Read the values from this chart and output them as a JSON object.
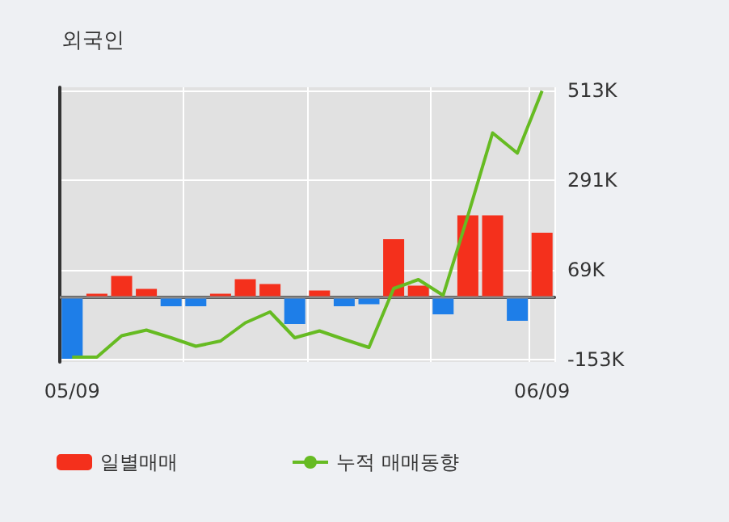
{
  "chart_data": {
    "type": "bar",
    "title": "외국인",
    "categories": [
      "05/09",
      null,
      null,
      null,
      null,
      null,
      null,
      null,
      null,
      null,
      null,
      null,
      null,
      null,
      null,
      null,
      null,
      null,
      null,
      "06/09"
    ],
    "series": [
      {
        "name": "일별매매",
        "color": "#f4301c",
        "colors": [
          "#1e7ee8",
          "#f4301c",
          "#f4301c",
          "#f4301c",
          "#1e7ee8",
          "#1e7ee8",
          "#f4301c",
          "#f4301c",
          "#f4301c",
          "#1e7ee8",
          "#f4301c",
          "#1e7ee8",
          "#1e7ee8",
          "#f4301c",
          "#f4301c",
          "#1e7ee8",
          "#f4301c",
          "#f4301c",
          "#1e7ee8",
          "#f4301c"
        ],
        "values": [
          -152,
          9,
          53,
          21,
          -22,
          -22,
          9,
          45,
          33,
          -66,
          17,
          -22,
          -17,
          144,
          29,
          -42,
          203,
          203,
          -58,
          160
        ]
      },
      {
        "name": "누적 매매동향",
        "type": "line",
        "color": "#66bb22",
        "values": [
          -148,
          -148,
          -95,
          -81,
          -100,
          -121,
          -108,
          -63,
          -36,
          -100,
          -83,
          -104,
          -124,
          22,
          44,
          5,
          202,
          407,
          357,
          511
        ]
      }
    ],
    "ylim": [
      -160,
      520
    ],
    "yticks": [
      {
        "value": -153,
        "label": "-153K"
      },
      {
        "value": 69,
        "label": "69K"
      },
      {
        "value": 291,
        "label": "291K"
      },
      {
        "value": 513,
        "label": "513K"
      }
    ],
    "ref_lines": [
      {
        "axis": "y",
        "value": 0,
        "color": "#888888"
      }
    ],
    "grid": true,
    "legend": "bottom left",
    "marker": "none"
  }
}
